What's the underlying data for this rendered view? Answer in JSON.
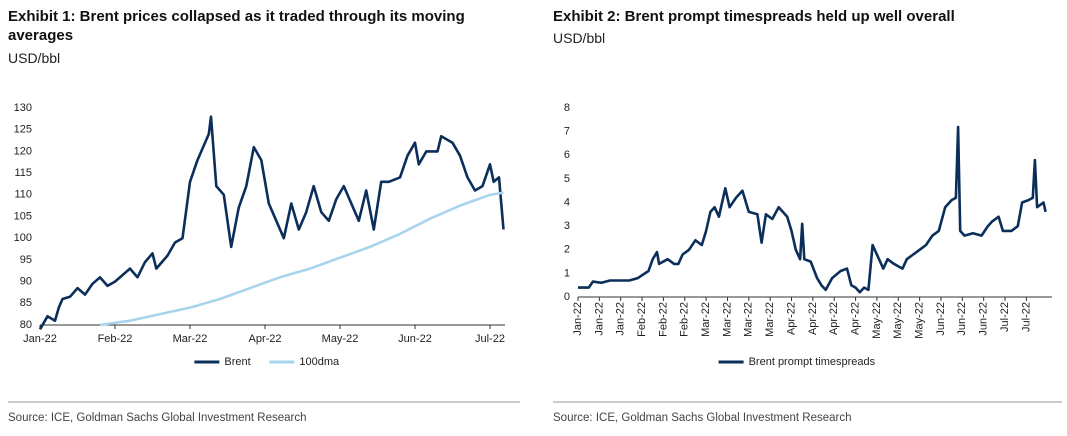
{
  "chart_data": [
    {
      "type": "line",
      "title": "Exhibit 1: Brent prices collapsed as it traded through its moving averages",
      "subtitle": "USD/bbl",
      "source": "Source: ICE, Goldman Sachs Global Investment Research",
      "xlim": [
        0,
        6.2
      ],
      "ylim": [
        80,
        130
      ],
      "xticks": [
        {
          "value": 0,
          "label": "Jan-22"
        },
        {
          "value": 1,
          "label": "Feb-22"
        },
        {
          "value": 2,
          "label": "Mar-22"
        },
        {
          "value": 3,
          "label": "Apr-22"
        },
        {
          "value": 4,
          "label": "May-22"
        },
        {
          "value": 5,
          "label": "Jun-22"
        },
        {
          "value": 6,
          "label": "Jul-22"
        }
      ],
      "yticks": [
        80,
        85,
        90,
        95,
        100,
        105,
        110,
        115,
        120,
        125,
        130
      ],
      "x_label_rotation": 0,
      "grid": false,
      "legend": "bottom",
      "series": [
        {
          "name": "Brent",
          "color": "#0b2f5a",
          "x": [
            0,
            0.1,
            0.2,
            0.25,
            0.3,
            0.4,
            0.5,
            0.6,
            0.7,
            0.8,
            0.9,
            1.0,
            1.1,
            1.2,
            1.3,
            1.4,
            1.5,
            1.55,
            1.7,
            1.8,
            1.9,
            2.0,
            2.1,
            2.25,
            2.28,
            2.35,
            2.45,
            2.55,
            2.65,
            2.75,
            2.85,
            2.95,
            3.05,
            3.15,
            3.25,
            3.35,
            3.45,
            3.55,
            3.65,
            3.75,
            3.85,
            3.95,
            4.05,
            4.15,
            4.25,
            4.35,
            4.45,
            4.55,
            4.65,
            4.8,
            4.9,
            5.0,
            5.05,
            5.15,
            5.3,
            5.35,
            5.5,
            5.6,
            5.7,
            5.8,
            5.9,
            6.0,
            6.05,
            6.12,
            6.18
          ],
          "values": [
            79,
            82,
            81,
            84,
            86,
            86.5,
            88.5,
            87,
            89.5,
            91,
            89,
            90,
            91.5,
            93,
            91,
            94.5,
            96.5,
            93,
            96,
            99,
            100,
            113,
            118,
            124,
            128,
            112,
            110,
            98,
            107,
            112,
            121,
            118,
            108,
            104,
            100,
            108,
            102,
            106,
            112,
            106,
            104,
            109,
            112,
            108,
            104,
            111,
            102,
            113,
            113,
            114,
            119,
            122,
            117,
            120,
            120,
            123.5,
            122,
            119,
            114,
            111,
            112,
            117,
            113,
            114,
            102
          ]
        },
        {
          "name": "100dma",
          "color": "#a9d4ee",
          "x": [
            0.8,
            1.2,
            1.6,
            2.0,
            2.4,
            2.8,
            3.2,
            3.6,
            4.0,
            4.4,
            4.8,
            5.2,
            5.6,
            6.0,
            6.18
          ],
          "values": [
            80,
            81,
            82.5,
            84,
            86,
            88.5,
            91,
            93,
            95.5,
            98,
            101,
            104.5,
            107.5,
            110,
            110.5
          ]
        }
      ]
    },
    {
      "type": "line",
      "title": "Exhibit 2: Brent prompt timespreads held up well overall",
      "subtitle": "USD/bbl",
      "source": "Source: ICE, Goldman Sachs Global Investment Research",
      "xlim": [
        0,
        22.2
      ],
      "ylim": [
        0,
        8
      ],
      "xticks": [
        {
          "value": 0,
          "label": "Jan-22"
        },
        {
          "value": 1,
          "label": "Jan-22"
        },
        {
          "value": 2,
          "label": "Jan-22"
        },
        {
          "value": 3,
          "label": "Feb-22"
        },
        {
          "value": 4,
          "label": "Feb-22"
        },
        {
          "value": 5,
          "label": "Feb-22"
        },
        {
          "value": 6,
          "label": "Mar-22"
        },
        {
          "value": 7,
          "label": "Mar-22"
        },
        {
          "value": 8,
          "label": "Mar-22"
        },
        {
          "value": 9,
          "label": "Mar-22"
        },
        {
          "value": 10,
          "label": "Apr-22"
        },
        {
          "value": 11,
          "label": "Apr-22"
        },
        {
          "value": 12,
          "label": "Apr-22"
        },
        {
          "value": 13,
          "label": "Apr-22"
        },
        {
          "value": 14,
          "label": "May-22"
        },
        {
          "value": 15,
          "label": "May-22"
        },
        {
          "value": 16,
          "label": "May-22"
        },
        {
          "value": 17,
          "label": "Jun-22"
        },
        {
          "value": 18,
          "label": "Jun-22"
        },
        {
          "value": 19,
          "label": "Jun-22"
        },
        {
          "value": 20,
          "label": "Jul-22"
        },
        {
          "value": 21,
          "label": "Jul-22"
        }
      ],
      "yticks": [
        0,
        1,
        2,
        3,
        4,
        5,
        6,
        7,
        8
      ],
      "x_label_rotation": -90,
      "grid": false,
      "legend": "bottom",
      "x": [
        0,
        0.5,
        0.7,
        1.1,
        1.5,
        2.0,
        2.4,
        2.8,
        3.3,
        3.5,
        3.7,
        3.8,
        4.2,
        4.5,
        4.7,
        4.9,
        5.2,
        5.5,
        5.8,
        6.0,
        6.2,
        6.4,
        6.6,
        6.9,
        7.1,
        7.4,
        7.7,
        8.0,
        8.4,
        8.6,
        8.8,
        9.1,
        9.4,
        9.8,
        10.0,
        10.2,
        10.4,
        10.5,
        10.6,
        10.9,
        11.2,
        11.4,
        11.6,
        11.9,
        12.3,
        12.6,
        12.8,
        13.0,
        13.2,
        13.4,
        13.6,
        13.8,
        14.0,
        14.3,
        14.5,
        14.8,
        15.2,
        15.4,
        15.7,
        16.0,
        16.3,
        16.6,
        16.9,
        17.2,
        17.5,
        17.7,
        17.8,
        17.9,
        18.1,
        18.5,
        18.9,
        19.2,
        19.4,
        19.7,
        19.9,
        20.3,
        20.6,
        20.8,
        21.1,
        21.3,
        21.4,
        21.5,
        21.8,
        21.9
      ],
      "series": [
        {
          "name": "Brent prompt timespreads",
          "color": "#0b2f5a",
          "values": [
            0.4,
            0.4,
            0.65,
            0.6,
            0.7,
            0.7,
            0.7,
            0.8,
            1.1,
            1.6,
            1.9,
            1.4,
            1.6,
            1.4,
            1.4,
            1.8,
            2.0,
            2.4,
            2.2,
            2.8,
            3.6,
            3.8,
            3.4,
            4.6,
            3.8,
            4.2,
            4.5,
            3.6,
            3.5,
            2.3,
            3.5,
            3.3,
            3.8,
            3.4,
            2.8,
            2.0,
            1.6,
            3.1,
            1.6,
            1.5,
            0.8,
            0.5,
            0.3,
            0.8,
            1.1,
            1.2,
            0.5,
            0.4,
            0.2,
            0.4,
            0.3,
            2.2,
            1.8,
            1.2,
            1.6,
            1.4,
            1.2,
            1.6,
            1.8,
            2.0,
            2.2,
            2.6,
            2.8,
            3.8,
            4.1,
            4.2,
            7.2,
            2.8,
            2.6,
            2.7,
            2.6,
            3.0,
            3.2,
            3.4,
            2.8,
            2.8,
            3.0,
            4.0,
            4.1,
            4.2,
            5.8,
            3.8,
            4.0,
            3.6
          ]
        }
      ]
    }
  ]
}
